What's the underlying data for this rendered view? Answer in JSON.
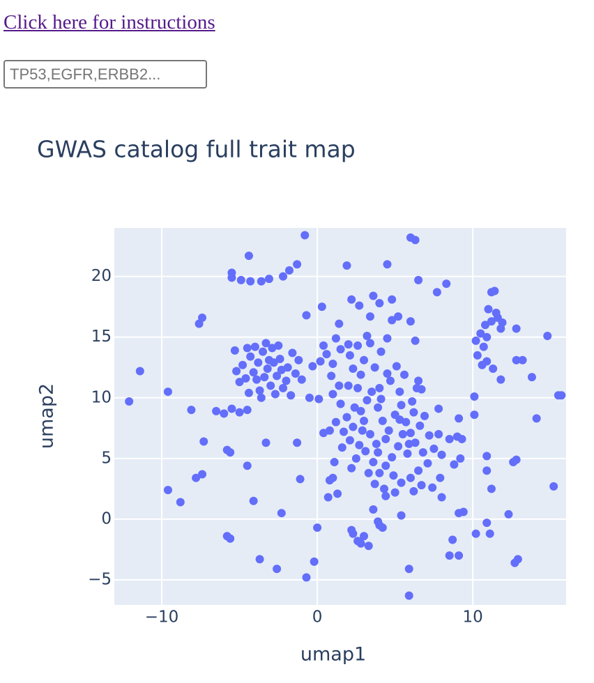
{
  "link": "Click here for instructions",
  "input_placeholder": "TP53,EGFR,ERBB2...",
  "chart_data": {
    "type": "scatter",
    "title": "GWAS catalog full trait map",
    "x_label": "umap1",
    "y_label": "umap2",
    "color": "#636efa",
    "grid": true,
    "xlim": [
      -13.05,
      16.0
    ],
    "ylim": [
      -7.07,
      24.0
    ],
    "xticks": [
      {
        "value": -10,
        "label": "−10"
      },
      0,
      10
    ],
    "yticks": [
      {
        "value": -5,
        "label": "−5"
      },
      0,
      5,
      10,
      15,
      20
    ],
    "x": [
      -11.4,
      -12.1,
      -9.6,
      -9.6,
      -8.8,
      -8.1,
      -7.6,
      -7.4,
      -7.8,
      -7.4,
      -7.3,
      -5.8,
      -5.6,
      -5.8,
      -5.6,
      -4.5,
      -4.1,
      -3.7,
      -2.6,
      -2.3,
      -3.3,
      -4.4,
      -5.5,
      -5.5,
      -4.9,
      -4.3,
      -3.6,
      -3.1,
      -2.2,
      -1.8,
      -1.3,
      -0.8,
      1.9,
      4.5,
      6.0,
      6.3,
      6.5,
      7.7,
      8.3,
      -6.5,
      -6.0,
      -5.5,
      -5.0,
      -4.5,
      -1.3,
      -1.1,
      0.0,
      -0.2,
      -0.7,
      0.3,
      -0.7,
      0.8,
      1.0,
      0.7,
      1.3,
      2.0,
      5.9,
      5.9,
      5.4,
      6.2,
      8.0,
      9.1,
      10.1,
      10.1,
      10.2,
      10.9,
      10.9,
      11.2,
      10.9,
      11.1,
      9.4,
      9.1,
      8.7,
      8.5,
      9.1,
      12.3,
      12.6,
      12.8,
      12.7,
      12.9,
      14.1,
      14.8,
      15.2,
      15.5,
      15.7,
      11.8,
      13.8,
      12.8,
      13.2,
      12.8,
      11.2,
      11.4,
      4.8,
      6.0,
      6.3,
      6.5,
      6.7,
      7.8,
      9.0,
      9.3,
      8.8,
      7.4,
      4.8,
      3.6,
      4.0,
      2.2,
      2.7,
      1.4,
      3.4,
      5.2,
      -3.2,
      -3.8,
      -2.6,
      -4.1,
      -2.4,
      -3.5,
      -2.9,
      -4.3,
      -3.0,
      -3.7,
      -2.2,
      -4.6,
      -1.9,
      -1.6,
      -2.5,
      -3.3,
      -4.0,
      -4.8,
      -5.0,
      -3.9,
      -2.8,
      -3.4,
      -2.0,
      -1.4,
      -1.2,
      -3.6,
      -2.7,
      -4.4,
      -5.2,
      -5.3,
      -4.5,
      -1.7,
      -1.0,
      -2.3,
      -3.1,
      0.2,
      0.6,
      1.0,
      1.5,
      2.1,
      2.6,
      3.0,
      3.4,
      0.4,
      1.2,
      2.3,
      0.9,
      -0.3,
      3.7,
      4.1,
      4.5,
      3.2,
      2.8,
      0.1,
      1.4,
      -0.5,
      1.5,
      1.9,
      2.3,
      2.1,
      1.7,
      2.8,
      3.2,
      3.5,
      2.6,
      3.9,
      4.2,
      4.6,
      5.0,
      5.4,
      5.7,
      6.0,
      6.3,
      5.8,
      5.2,
      4.8,
      4.4,
      4.0,
      3.6,
      3.1,
      2.7,
      3.4,
      3.8,
      5.5,
      6.6,
      6.9,
      7.2,
      7.5,
      7.1,
      6.5,
      6.0,
      5.4,
      4.9,
      4.3,
      3.3,
      2.5,
      1.6,
      1.2,
      0.8,
      0.4,
      1.0,
      2.0,
      4.0,
      4.7,
      5.3,
      6.1,
      6.4,
      5.1,
      4.5,
      2.9,
      3.0,
      4.1,
      5.9,
      6.8,
      8.0,
      8.5,
      9.2,
      7.8,
      5.6,
      3.7,
      2.2,
      1.1,
      5.0,
      6.7,
      7.9,
      5.3,
      4.4,
      3.9,
      6.2,
      2.4,
      11.2,
      10.8,
      11.6,
      11.0,
      11.8,
      10.5,
      10.2,
      10.7,
      10.3,
      10.9,
      11.3,
      10.6,
      11.5,
      11.9,
      10.9,
      2.3,
      2.6,
      3.0,
      2.8,
      2.2,
      3.3,
      4.0,
      3.6,
      4.4,
      3.9,
      4.2
    ],
    "y": [
      12.2,
      9.7,
      10.5,
      2.4,
      1.4,
      9.0,
      16.1,
      16.6,
      3.4,
      3.7,
      6.4,
      -1.4,
      -1.6,
      5.7,
      5.5,
      4.4,
      1.5,
      -3.3,
      -4.1,
      0.5,
      6.3,
      21.7,
      20.3,
      19.9,
      19.7,
      19.6,
      19.6,
      19.8,
      20.0,
      20.5,
      21.0,
      23.4,
      20.9,
      21.0,
      23.2,
      23.0,
      19.7,
      18.7,
      19.4,
      8.9,
      8.7,
      9.1,
      8.8,
      9.0,
      6.3,
      3.3,
      -0.7,
      -3.5,
      -4.8,
      17.5,
      16.8,
      3.2,
      3.4,
      1.8,
      2.1,
      14.4,
      -4.1,
      -6.3,
      0.3,
      2.3,
      1.8,
      8.3,
      10.1,
      8.6,
      -1.2,
      -0.3,
      4.0,
      2.5,
      5.2,
      -1.2,
      0.6,
      0.5,
      -1.7,
      -3.0,
      -3.0,
      0.4,
      4.7,
      4.9,
      -3.6,
      -3.3,
      8.3,
      15.1,
      2.7,
      10.2,
      10.2,
      11.5,
      11.7,
      13.1,
      13.1,
      15.7,
      18.7,
      18.8,
      16.4,
      16.3,
      14.7,
      11.4,
      10.7,
      9.1,
      6.8,
      6.6,
      4.5,
      2.6,
      18.1,
      18.4,
      17.8,
      18.1,
      17.6,
      16.1,
      16.7,
      16.7,
      12.4,
      12.9,
      11.8,
      12.1,
      13.2,
      13.8,
      14.1,
      13.4,
      11.0,
      10.6,
      10.8,
      11.6,
      12.5,
      13.7,
      14.3,
      14.5,
      14.2,
      12.7,
      11.3,
      11.5,
      12.9,
      11.7,
      11.4,
      12.0,
      13.1,
      10.0,
      10.3,
      10.4,
      12.2,
      13.9,
      14.1,
      10.2,
      11.5,
      12.3,
      13.1,
      13.0,
      13.6,
      12.8,
      14.0,
      13.5,
      14.3,
      13.1,
      14.5,
      14.3,
      14.9,
      12.4,
      11.8,
      12.6,
      12.5,
      13.8,
      14.9,
      15.1,
      11.9,
      9.9,
      11.0,
      10.0,
      9.5,
      8.4,
      7.6,
      6.5,
      7.2,
      8.9,
      9.8,
      10.5,
      10.8,
      9.2,
      8.1,
      7.3,
      8.6,
      9.4,
      8.0,
      7.1,
      6.3,
      5.4,
      6.0,
      5.1,
      4.4,
      3.8,
      4.7,
      5.6,
      6.1,
      7.0,
      6.2,
      7.0,
      7.7,
      8.5,
      6.9,
      5.8,
      4.6,
      4.0,
      3.4,
      3.0,
      3.6,
      2.5,
      3.8,
      5.0,
      5.9,
      8.0,
      7.3,
      7.1,
      10.3,
      11.0,
      10.8,
      11.4,
      10.5,
      9.7,
      10.8,
      12.6,
      12.0,
      7.3,
      8.1,
      9.9,
      6.2,
      5.5,
      5.3,
      6.6,
      5.0,
      7.0,
      11.9,
      2.9,
      4.2,
      4.7,
      2.2,
      2.8,
      3.4,
      8.2,
      6.6,
      5.5,
      8.8,
      9.2,
      16.3,
      16.0,
      16.6,
      17.3,
      15.7,
      15.3,
      14.7,
      14.2,
      13.5,
      13.0,
      12.4,
      12.7,
      17.0,
      16.2,
      15.0,
      -1.2,
      -1.8,
      -1.4,
      -2.0,
      -0.9,
      -2.2,
      -0.5,
      0.8,
      1.9,
      -0.2,
      -0.7
    ]
  }
}
